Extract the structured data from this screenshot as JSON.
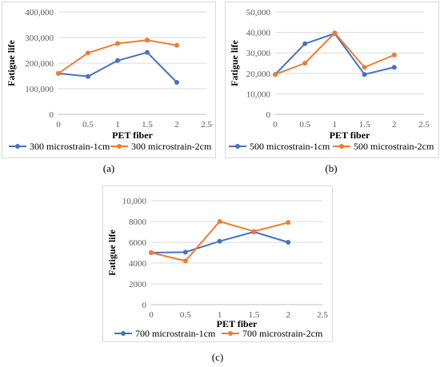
{
  "figure": {
    "captions": [
      "(a)",
      "(b)",
      "(c)"
    ]
  },
  "chart_data": [
    {
      "type": "line",
      "caption": "(a)",
      "xlabel": "PET fiber",
      "ylabel": "Fatigue life",
      "xlim": [
        0,
        2.5
      ],
      "ylim": [
        0,
        400000
      ],
      "x_ticks": [
        0,
        0.5,
        1,
        1.5,
        2,
        2.5
      ],
      "x_tick_labels": [
        "0",
        "0.5",
        "1",
        "1.5",
        "2",
        "2.5"
      ],
      "y_ticks": [
        0,
        100000,
        200000,
        300000,
        400000
      ],
      "y_tick_labels": [
        "0",
        "100,000",
        "200,000",
        "300,000",
        "400,000"
      ],
      "grid": "horizontal",
      "legend_position": "bottom",
      "series": [
        {
          "name": "300 microstrain-1cm",
          "color": "#4472C4",
          "x": [
            0,
            0.5,
            1,
            1.5,
            2
          ],
          "values": [
            160000,
            148000,
            210000,
            242000,
            125000
          ]
        },
        {
          "name": "300 microstrain-2cm",
          "color": "#ED7D31",
          "x": [
            0,
            0.5,
            1,
            1.5,
            2
          ],
          "values": [
            160000,
            240000,
            277000,
            290000,
            270000
          ]
        }
      ]
    },
    {
      "type": "line",
      "caption": "(b)",
      "xlabel": "PET fiber",
      "ylabel": "Fatigue life",
      "xlim": [
        0,
        2.5
      ],
      "ylim": [
        0,
        50000
      ],
      "x_ticks": [
        0,
        0.5,
        1,
        1.5,
        2,
        2.5
      ],
      "x_tick_labels": [
        "0",
        "0.5",
        "1",
        "1.5",
        "2",
        "2.5"
      ],
      "y_ticks": [
        0,
        10000,
        20000,
        30000,
        40000,
        50000
      ],
      "y_tick_labels": [
        "0",
        "10,000",
        "20,000",
        "30,000",
        "40,000",
        "50,000"
      ],
      "grid": "horizontal",
      "legend_position": "bottom",
      "series": [
        {
          "name": "500 microstrain-1cm",
          "color": "#4472C4",
          "x": [
            0,
            0.5,
            1,
            1.5,
            2
          ],
          "values": [
            19500,
            34500,
            39500,
            19500,
            23000
          ]
        },
        {
          "name": "500 microstrain-2cm",
          "color": "#ED7D31",
          "x": [
            0,
            0.5,
            1,
            1.5,
            2
          ],
          "values": [
            19500,
            25000,
            39800,
            23000,
            29000
          ]
        }
      ]
    },
    {
      "type": "line",
      "caption": "(c)",
      "xlabel": "PET fiber",
      "ylabel": "Fatigue life",
      "xlim": [
        0,
        2.5
      ],
      "ylim": [
        0,
        10000
      ],
      "x_ticks": [
        0,
        0.5,
        1,
        1.5,
        2,
        2.5
      ],
      "x_tick_labels": [
        "0",
        "0.5",
        "1",
        "1.5",
        "2",
        "2.5"
      ],
      "y_ticks": [
        0,
        2000,
        4000,
        6000,
        8000,
        10000
      ],
      "y_tick_labels": [
        "0",
        "2000",
        "4000",
        "6000",
        "8000",
        "10,000"
      ],
      "grid": "horizontal",
      "legend_position": "bottom",
      "series": [
        {
          "name": "700 microstrain-1cm",
          "color": "#4472C4",
          "x": [
            0,
            0.5,
            1,
            1.5,
            2
          ],
          "values": [
            5000,
            5050,
            6100,
            7000,
            6000
          ]
        },
        {
          "name": "700 microstrain-2cm",
          "color": "#ED7D31",
          "x": [
            0,
            0.5,
            1,
            1.5,
            2
          ],
          "values": [
            5000,
            4200,
            8000,
            7050,
            7900
          ]
        }
      ]
    }
  ]
}
